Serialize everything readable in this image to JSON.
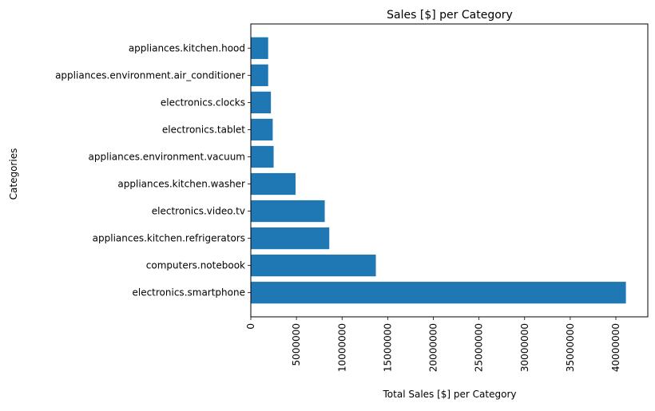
{
  "chart_data": {
    "type": "bar",
    "orientation": "horizontal",
    "title": "Sales [$] per Category",
    "xlabel": "Total Sales [$] per Category",
    "ylabel": "Categories",
    "categories": [
      "electronics.smartphone",
      "computers.notebook",
      "appliances.kitchen.refrigerators",
      "electronics.video.tv",
      "appliances.kitchen.washer",
      "appliances.environment.vacuum",
      "electronics.tablet",
      "electronics.clocks",
      "appliances.environment.air_conditioner",
      "appliances.kitchen.hood"
    ],
    "values": [
      41100000,
      13700000,
      8600000,
      8100000,
      4900000,
      2500000,
      2400000,
      2200000,
      1900000,
      1900000
    ],
    "xlim": [
      0,
      43500000
    ],
    "xticks": [
      0,
      5000000,
      10000000,
      15000000,
      20000000,
      25000000,
      30000000,
      35000000,
      40000000
    ],
    "xtick_labels": [
      "0",
      "5000000",
      "10000000",
      "15000000",
      "20000000",
      "25000000",
      "30000000",
      "35000000",
      "40000000"
    ],
    "xtick_rotation": 90,
    "grid": false,
    "legend": "none",
    "bar_color": "#1f77b4"
  }
}
